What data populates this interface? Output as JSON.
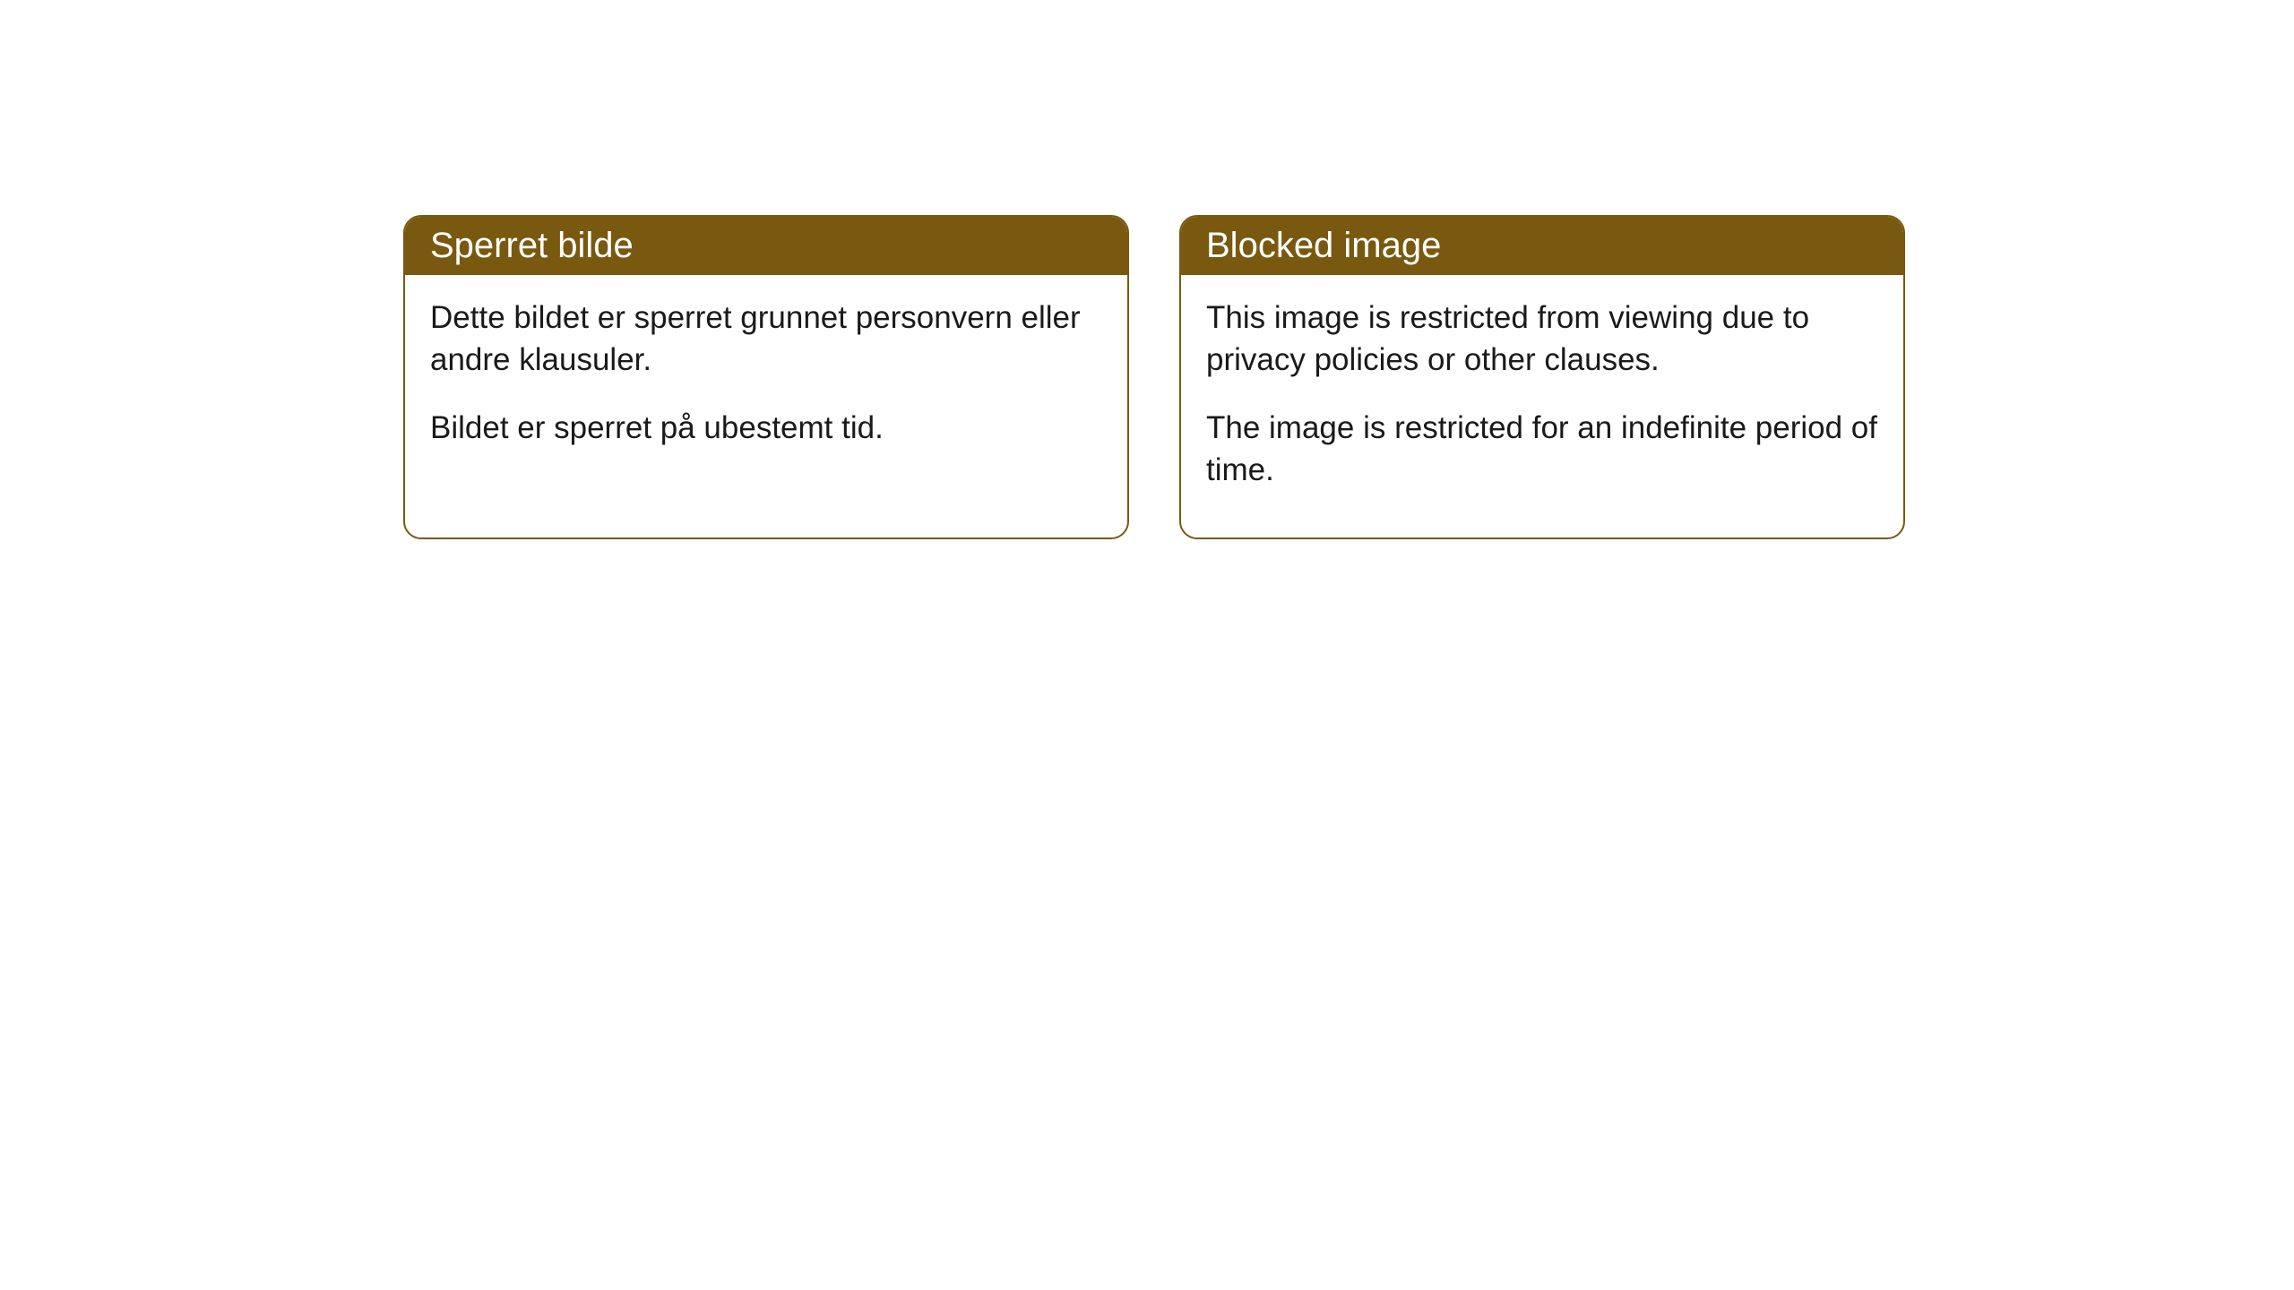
{
  "cards": [
    {
      "title": "Sperret bilde",
      "paragraph1": "Dette bildet er sperret grunnet personvern eller andre klausuler.",
      "paragraph2": "Bildet er sperret på ubestemt tid."
    },
    {
      "title": "Blocked image",
      "paragraph1": "This image is restricted from viewing due to privacy policies or other clauses.",
      "paragraph2": "The image is restricted for an indefinite period of time."
    }
  ],
  "style": {
    "header_background": "#78590f",
    "header_text_color": "#ffffff",
    "card_border_color": "#78590f",
    "card_background": "#ffffff",
    "body_text_color": "#1a1a1a",
    "border_radius": 20,
    "header_fontsize": 40,
    "body_fontsize": 35
  }
}
